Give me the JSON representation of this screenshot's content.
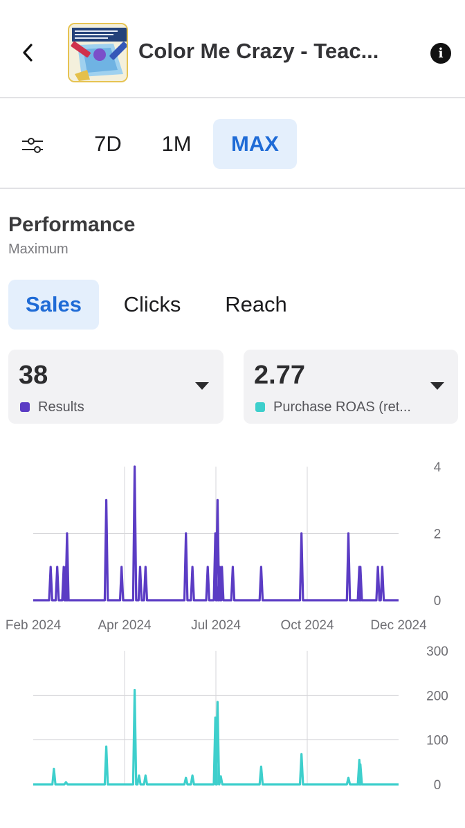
{
  "header": {
    "title": "Color Me Crazy - Teac...",
    "back_icon": "chevron-left-icon",
    "info_icon": "info-icon",
    "info_glyph": "i"
  },
  "range": {
    "filter_icon": "sliders-icon",
    "options": [
      "7D",
      "1M",
      "MAX"
    ],
    "selected": "MAX"
  },
  "performance": {
    "title": "Performance",
    "subtitle": "Maximum",
    "tabs": [
      "Sales",
      "Clicks",
      "Reach"
    ],
    "selected_tab": "Sales"
  },
  "metrics": [
    {
      "value": "38",
      "label": "Results",
      "color": "#5b3cc4"
    },
    {
      "value": "2.77",
      "label": "Purchase ROAS (ret...",
      "color": "#3ecfcc"
    }
  ],
  "colors": {
    "accent": "#1f6bd6",
    "accent_bg": "#e4effc",
    "results": "#5b3cc4",
    "roas": "#3ecfcc"
  },
  "chart_data": [
    {
      "type": "line",
      "series": [
        {
          "name": "Results",
          "color": "#5b3cc4",
          "points": [
            [
              "2024-02-10",
              1
            ],
            [
              "2024-02-16",
              1
            ],
            [
              "2024-02-22",
              1
            ],
            [
              "2024-02-24",
              1
            ],
            [
              "2024-02-25",
              2
            ],
            [
              "2024-04-01",
              3
            ],
            [
              "2024-04-15",
              1
            ],
            [
              "2024-04-27",
              4
            ],
            [
              "2024-05-02",
              1
            ],
            [
              "2024-05-07",
              1
            ],
            [
              "2024-06-13",
              2
            ],
            [
              "2024-06-19",
              1
            ],
            [
              "2024-07-03",
              1
            ],
            [
              "2024-07-10",
              2
            ],
            [
              "2024-07-12",
              3
            ],
            [
              "2024-07-14",
              1
            ],
            [
              "2024-07-16",
              1
            ],
            [
              "2024-07-26",
              1
            ],
            [
              "2024-08-21",
              1
            ],
            [
              "2024-09-27",
              2
            ],
            [
              "2024-11-09",
              2
            ],
            [
              "2024-11-19",
              1
            ],
            [
              "2024-11-20",
              1
            ],
            [
              "2024-12-06",
              1
            ],
            [
              "2024-12-10",
              1
            ]
          ]
        }
      ],
      "x": {
        "start": "2024-01-25",
        "end": "2024-12-25",
        "ticks": [
          "Feb 2024",
          "Apr 2024",
          "Jul 2024",
          "Oct 2024",
          "Dec 2024"
        ]
      },
      "ylim": [
        0,
        4
      ],
      "yticks": [
        "0",
        "2",
        "4"
      ],
      "grid": true
    },
    {
      "type": "line",
      "series": [
        {
          "name": "Purchase ROAS (ret...",
          "color": "#3ecfcc",
          "points": [
            [
              "2024-02-13",
              35
            ],
            [
              "2024-02-24",
              5
            ],
            [
              "2024-04-01",
              85
            ],
            [
              "2024-04-27",
              212
            ],
            [
              "2024-05-01",
              20
            ],
            [
              "2024-05-07",
              20
            ],
            [
              "2024-06-13",
              15
            ],
            [
              "2024-06-19",
              20
            ],
            [
              "2024-07-10",
              150
            ],
            [
              "2024-07-12",
              185
            ],
            [
              "2024-07-15",
              18
            ],
            [
              "2024-08-21",
              40
            ],
            [
              "2024-09-27",
              68
            ],
            [
              "2024-11-09",
              15
            ],
            [
              "2024-11-19",
              55
            ],
            [
              "2024-11-20",
              45
            ]
          ]
        }
      ],
      "x": {
        "start": "2024-01-25",
        "end": "2024-12-25"
      },
      "ylim": [
        0,
        300
      ],
      "yticks": [
        "0",
        "100",
        "200",
        "300"
      ],
      "grid": true
    }
  ]
}
